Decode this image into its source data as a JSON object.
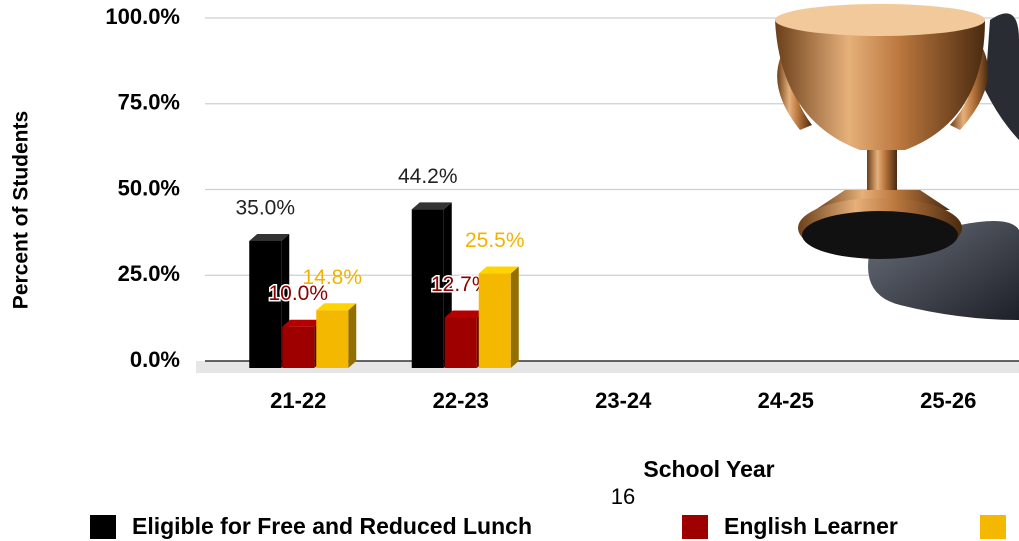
{
  "chart_data": {
    "type": "bar",
    "y_label": "Percent of Students",
    "x_label": "School Year",
    "categories": [
      "21-22",
      "22-23",
      "23-24",
      "24-25",
      "25-26"
    ],
    "series": [
      {
        "name": "Eligible for Free and Reduced Lunch",
        "color": "#000000",
        "values": [
          35.0,
          44.2,
          null,
          null,
          null
        ],
        "value_labels": [
          "35.0%",
          "44.2%",
          null,
          null,
          null
        ]
      },
      {
        "name": "English Learner",
        "color": "#9e0000",
        "values": [
          10.0,
          12.7,
          null,
          null,
          null
        ],
        "value_labels": [
          "10.0%",
          "12.7%",
          null,
          null,
          null
        ]
      },
      {
        "color": "#f5b800",
        "values": [
          14.8,
          25.5,
          null,
          null,
          null
        ],
        "value_labels": [
          "14.8%",
          "25.5%",
          null,
          null,
          null
        ]
      }
    ],
    "ylim": [
      0,
      100
    ],
    "yticks": [
      {
        "value": 0,
        "label": "0.0%"
      },
      {
        "value": 25,
        "label": "25.0%"
      },
      {
        "value": 50,
        "label": "50.0%"
      },
      {
        "value": 75,
        "label": "75.0%"
      },
      {
        "value": 100,
        "label": "100.0%"
      }
    ],
    "grid": true
  },
  "page_number": "16"
}
